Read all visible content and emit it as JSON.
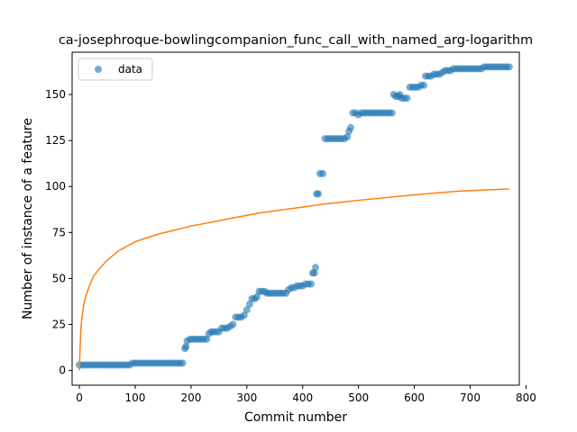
{
  "chart_data": {
    "type": "scatter",
    "title": "ca-josephroque-bowlingcompanion_func_call_with_named_arg-logarithm",
    "xlabel": "Commit number",
    "ylabel": "Number of instance of a feature",
    "xlim": [
      -13,
      788
    ],
    "ylim": [
      -8,
      173
    ],
    "xticks": [
      0,
      100,
      200,
      300,
      400,
      500,
      600,
      700,
      800
    ],
    "yticks": [
      0,
      25,
      50,
      75,
      100,
      125,
      150
    ],
    "grid": false,
    "legend": {
      "placement": "top-left",
      "entries": [
        "data"
      ]
    },
    "colors": {
      "data": "#1f77b4",
      "fit": "#ff7f0e"
    },
    "series": [
      {
        "name": "data",
        "kind": "scatter",
        "points": [
          [
            0,
            3
          ],
          [
            5,
            3
          ],
          [
            10,
            3
          ],
          [
            15,
            3
          ],
          [
            20,
            3
          ],
          [
            25,
            3
          ],
          [
            30,
            3
          ],
          [
            35,
            3
          ],
          [
            40,
            3
          ],
          [
            45,
            3
          ],
          [
            50,
            3
          ],
          [
            55,
            3
          ],
          [
            60,
            3
          ],
          [
            65,
            3
          ],
          [
            70,
            3
          ],
          [
            75,
            3
          ],
          [
            80,
            3
          ],
          [
            85,
            3
          ],
          [
            90,
            3
          ],
          [
            95,
            4
          ],
          [
            100,
            4
          ],
          [
            105,
            4
          ],
          [
            110,
            4
          ],
          [
            115,
            4
          ],
          [
            120,
            4
          ],
          [
            125,
            4
          ],
          [
            130,
            4
          ],
          [
            135,
            4
          ],
          [
            140,
            4
          ],
          [
            145,
            4
          ],
          [
            150,
            4
          ],
          [
            155,
            4
          ],
          [
            160,
            4
          ],
          [
            165,
            4
          ],
          [
            170,
            4
          ],
          [
            175,
            4
          ],
          [
            180,
            4
          ],
          [
            185,
            4
          ],
          [
            189,
            12
          ],
          [
            191,
            13
          ],
          [
            193,
            16
          ],
          [
            198,
            17
          ],
          [
            203,
            17
          ],
          [
            208,
            17
          ],
          [
            213,
            17
          ],
          [
            218,
            17
          ],
          [
            223,
            17
          ],
          [
            228,
            17
          ],
          [
            232,
            20
          ],
          [
            236,
            21
          ],
          [
            240,
            21
          ],
          [
            245,
            21
          ],
          [
            250,
            21
          ],
          [
            255,
            23
          ],
          [
            260,
            23
          ],
          [
            265,
            23
          ],
          [
            270,
            24
          ],
          [
            275,
            25
          ],
          [
            280,
            29
          ],
          [
            285,
            29
          ],
          [
            290,
            29
          ],
          [
            295,
            30
          ],
          [
            300,
            33
          ],
          [
            305,
            36
          ],
          [
            309,
            39
          ],
          [
            314,
            39
          ],
          [
            318,
            40
          ],
          [
            322,
            43
          ],
          [
            327,
            43
          ],
          [
            332,
            43
          ],
          [
            336,
            42
          ],
          [
            340,
            42
          ],
          [
            345,
            42
          ],
          [
            350,
            42
          ],
          [
            355,
            42
          ],
          [
            360,
            42
          ],
          [
            365,
            42
          ],
          [
            370,
            42
          ],
          [
            375,
            44
          ],
          [
            380,
            45
          ],
          [
            385,
            45
          ],
          [
            390,
            46
          ],
          [
            395,
            46
          ],
          [
            400,
            46
          ],
          [
            405,
            47
          ],
          [
            410,
            47
          ],
          [
            415,
            47
          ],
          [
            418,
            53
          ],
          [
            421,
            53
          ],
          [
            423,
            56
          ],
          [
            425,
            96
          ],
          [
            428,
            96
          ],
          [
            431,
            107
          ],
          [
            436,
            107
          ],
          [
            440,
            126
          ],
          [
            445,
            126
          ],
          [
            450,
            126
          ],
          [
            455,
            126
          ],
          [
            460,
            126
          ],
          [
            465,
            126
          ],
          [
            470,
            126
          ],
          [
            475,
            126
          ],
          [
            480,
            127
          ],
          [
            483,
            130
          ],
          [
            486,
            132
          ],
          [
            490,
            140
          ],
          [
            495,
            140
          ],
          [
            500,
            139
          ],
          [
            505,
            140
          ],
          [
            510,
            140
          ],
          [
            515,
            140
          ],
          [
            520,
            140
          ],
          [
            525,
            140
          ],
          [
            530,
            140
          ],
          [
            535,
            140
          ],
          [
            540,
            140
          ],
          [
            545,
            140
          ],
          [
            550,
            140
          ],
          [
            555,
            140
          ],
          [
            560,
            140
          ],
          [
            563,
            150
          ],
          [
            567,
            149
          ],
          [
            571,
            149
          ],
          [
            574,
            150
          ],
          [
            577,
            148
          ],
          [
            582,
            148
          ],
          [
            587,
            148
          ],
          [
            592,
            154
          ],
          [
            597,
            154
          ],
          [
            602,
            154
          ],
          [
            607,
            154
          ],
          [
            612,
            155
          ],
          [
            617,
            155
          ],
          [
            620,
            160
          ],
          [
            625,
            160
          ],
          [
            630,
            160
          ],
          [
            635,
            161
          ],
          [
            640,
            161
          ],
          [
            645,
            161
          ],
          [
            650,
            162
          ],
          [
            655,
            163
          ],
          [
            660,
            163
          ],
          [
            665,
            163
          ],
          [
            670,
            164
          ],
          [
            675,
            164
          ],
          [
            680,
            164
          ],
          [
            685,
            164
          ],
          [
            690,
            164
          ],
          [
            695,
            164
          ],
          [
            700,
            164
          ],
          [
            705,
            164
          ],
          [
            710,
            164
          ],
          [
            715,
            164
          ],
          [
            720,
            164
          ],
          [
            725,
            165
          ],
          [
            730,
            165
          ],
          [
            735,
            165
          ],
          [
            740,
            165
          ],
          [
            745,
            165
          ],
          [
            750,
            165
          ],
          [
            755,
            165
          ],
          [
            760,
            165
          ],
          [
            765,
            165
          ],
          [
            770,
            165
          ]
        ]
      },
      {
        "name": "",
        "kind": "line",
        "function": "logarithmic fit",
        "points": [
          [
            0,
            0
          ],
          [
            1,
            10
          ],
          [
            2,
            18
          ],
          [
            3,
            24
          ],
          [
            5,
            30
          ],
          [
            8,
            36
          ],
          [
            12,
            41
          ],
          [
            18,
            46
          ],
          [
            25,
            51
          ],
          [
            35,
            55
          ],
          [
            50,
            60
          ],
          [
            70,
            65
          ],
          [
            100,
            70
          ],
          [
            140,
            74
          ],
          [
            200,
            78.5
          ],
          [
            260,
            82
          ],
          [
            320,
            85.5
          ],
          [
            380,
            88
          ],
          [
            440,
            90.5
          ],
          [
            500,
            92.5
          ],
          [
            560,
            94.3
          ],
          [
            620,
            96
          ],
          [
            680,
            97.5
          ],
          [
            740,
            98.3
          ],
          [
            770,
            98.7
          ]
        ]
      }
    ]
  }
}
